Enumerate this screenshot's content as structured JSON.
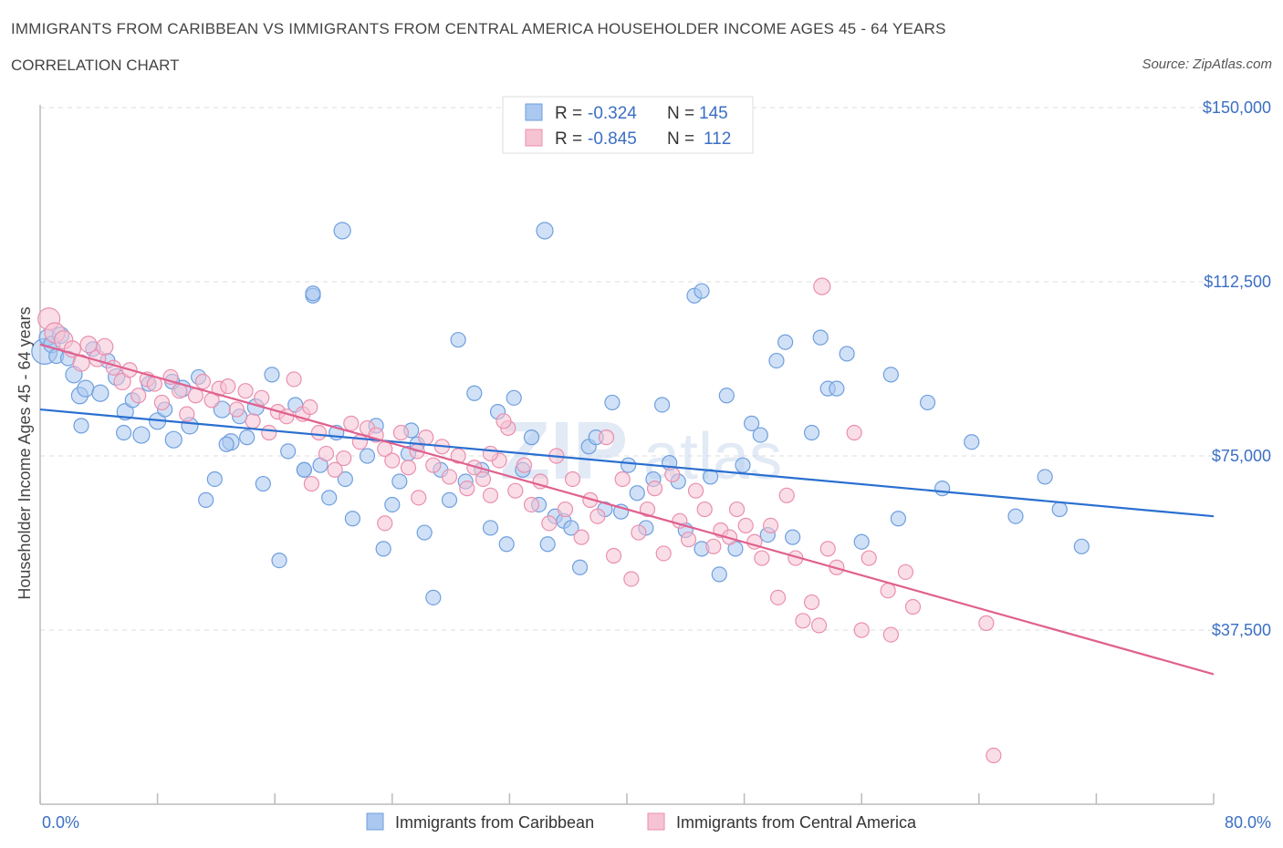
{
  "header": {
    "title": "IMMIGRANTS FROM CARIBBEAN VS IMMIGRANTS FROM CENTRAL AMERICA HOUSEHOLDER INCOME AGES 45 - 64 YEARS",
    "subtitle": "CORRELATION CHART",
    "source": "Source: ZipAtlas.com"
  },
  "watermark": {
    "zip": "ZIP",
    "atlas": "atlas"
  },
  "colors": {
    "blue_fill": "#aac8f0",
    "blue_stroke": "#6f9fde",
    "blue_line": "#2a6fd1",
    "pink_fill": "#f6c3d3",
    "pink_stroke": "#ea8fae",
    "pink_line": "#e0608e",
    "axis_label": "#3b6fc4",
    "grid": "#dddddd"
  },
  "legend": {
    "rows": [
      {
        "r_label": "R = ",
        "r_value": "-0.324",
        "n_label": "N = ",
        "n_value": "145"
      },
      {
        "r_label": "R = ",
        "r_value": "-0.845",
        "n_label": "N = ",
        "n_value": "112"
      }
    ]
  },
  "bottom_legend": [
    "Immigrants from Caribbean",
    "Immigrants from Central America"
  ],
  "chart_data": {
    "type": "scatter",
    "title": "IMMIGRANTS FROM CARIBBEAN VS IMMIGRANTS FROM CENTRAL AMERICA HOUSEHOLDER INCOME AGES 45 - 64 YEARS",
    "xlabel": "",
    "ylabel": "Householder Income Ages 45 - 64 years",
    "xlim": [
      0,
      80
    ],
    "ylim": [
      0,
      150000
    ],
    "x_tick_labels": [
      "0.0%",
      "80.0%"
    ],
    "y_ticks": [
      37500,
      75000,
      112500,
      150000
    ],
    "y_tick_labels": [
      "$37,500",
      "$75,000",
      "$112,500",
      "$150,000"
    ],
    "grid": true,
    "series": [
      {
        "name": "Immigrants from Caribbean",
        "R": -0.324,
        "N": 145,
        "trend": {
          "x": [
            0,
            80
          ],
          "y": [
            85000,
            62000
          ]
        },
        "points": [
          [
            0.3,
            97500,
            14
          ],
          [
            0.5,
            100500,
            9
          ],
          [
            0.8,
            99000,
            9
          ],
          [
            1.1,
            96500,
            8
          ],
          [
            1.4,
            101000,
            9
          ],
          [
            1.9,
            96000,
            8
          ],
          [
            2.3,
            92500,
            9
          ],
          [
            2.7,
            88000,
            9
          ],
          [
            3.1,
            89500,
            9
          ],
          [
            3.6,
            98000,
            8
          ],
          [
            4.1,
            88500,
            9
          ],
          [
            4.6,
            95500,
            8
          ],
          [
            5.2,
            92000,
            9
          ],
          [
            5.8,
            84500,
            9
          ],
          [
            6.3,
            87000,
            8
          ],
          [
            6.9,
            79500,
            9
          ],
          [
            7.4,
            90500,
            8
          ],
          [
            8.0,
            82500,
            9
          ],
          [
            8.5,
            85000,
            8
          ],
          [
            9.1,
            78500,
            9
          ],
          [
            9.7,
            89500,
            9
          ],
          [
            10.2,
            81500,
            9
          ],
          [
            10.8,
            92000,
            8
          ],
          [
            11.3,
            65500,
            8
          ],
          [
            11.9,
            70000,
            8
          ],
          [
            12.4,
            85000,
            9
          ],
          [
            13.0,
            78000,
            9
          ],
          [
            13.6,
            83500,
            8
          ],
          [
            14.1,
            79000,
            8
          ],
          [
            14.7,
            85500,
            9
          ],
          [
            15.2,
            69000,
            8
          ],
          [
            15.8,
            92500,
            8
          ],
          [
            16.3,
            52500,
            8
          ],
          [
            16.9,
            76000,
            8
          ],
          [
            17.4,
            86000,
            8
          ],
          [
            18.0,
            72000,
            8
          ],
          [
            18.6,
            109500,
            8
          ],
          [
            19.1,
            73000,
            8
          ],
          [
            19.7,
            66000,
            8
          ],
          [
            20.2,
            80000,
            8
          ],
          [
            20.8,
            70000,
            8
          ],
          [
            21.3,
            61500,
            8
          ],
          [
            22.3,
            75000,
            8
          ],
          [
            22.9,
            81500,
            8
          ],
          [
            23.4,
            55000,
            8
          ],
          [
            24.0,
            64500,
            8
          ],
          [
            24.5,
            69500,
            8
          ],
          [
            25.1,
            75500,
            8
          ],
          [
            25.7,
            77500,
            8
          ],
          [
            26.2,
            58500,
            8
          ],
          [
            26.8,
            44500,
            8
          ],
          [
            27.3,
            72000,
            8
          ],
          [
            27.9,
            65500,
            8
          ],
          [
            28.5,
            100000,
            8
          ],
          [
            29.0,
            69500,
            8
          ],
          [
            29.6,
            88500,
            8
          ],
          [
            30.1,
            72000,
            8
          ],
          [
            30.7,
            59500,
            8
          ],
          [
            31.2,
            84500,
            8
          ],
          [
            31.8,
            56000,
            8
          ],
          [
            32.3,
            87500,
            8
          ],
          [
            32.9,
            72000,
            8
          ],
          [
            33.5,
            79000,
            8
          ],
          [
            34.0,
            64500,
            8
          ],
          [
            34.6,
            56000,
            8
          ],
          [
            35.1,
            62000,
            8
          ],
          [
            35.7,
            61000,
            8
          ],
          [
            36.2,
            59500,
            8
          ],
          [
            36.8,
            51000,
            8
          ],
          [
            37.4,
            77000,
            8
          ],
          [
            37.9,
            79000,
            8
          ],
          [
            38.5,
            63500,
            8
          ],
          [
            39.0,
            86500,
            8
          ],
          [
            39.6,
            63000,
            8
          ],
          [
            40.1,
            73000,
            8
          ],
          [
            40.7,
            67000,
            8
          ],
          [
            41.3,
            59500,
            8
          ],
          [
            41.8,
            70000,
            8
          ],
          [
            42.4,
            86000,
            8
          ],
          [
            42.9,
            73500,
            8
          ],
          [
            43.5,
            69500,
            8
          ],
          [
            44.0,
            59000,
            8
          ],
          [
            44.6,
            109500,
            8
          ],
          [
            45.1,
            55000,
            8
          ],
          [
            45.7,
            70500,
            8
          ],
          [
            46.3,
            49500,
            8
          ],
          [
            46.8,
            88000,
            8
          ],
          [
            47.4,
            55000,
            8
          ],
          [
            47.9,
            73000,
            8
          ],
          [
            48.5,
            82000,
            8
          ],
          [
            49.1,
            79500,
            8
          ],
          [
            49.6,
            58000,
            8
          ],
          [
            50.2,
            95500,
            8
          ],
          [
            50.8,
            99500,
            8
          ],
          [
            51.3,
            57500,
            8
          ],
          [
            52.6,
            80000,
            8
          ],
          [
            53.2,
            100500,
            8
          ],
          [
            53.7,
            89500,
            8
          ],
          [
            54.3,
            89500,
            8
          ],
          [
            55.0,
            97000,
            8
          ],
          [
            56.0,
            56500,
            8
          ],
          [
            58.0,
            92500,
            8
          ],
          [
            58.5,
            61500,
            8
          ],
          [
            60.5,
            86500,
            8
          ],
          [
            61.5,
            68000,
            8
          ],
          [
            63.5,
            78000,
            8
          ],
          [
            66.5,
            62000,
            8
          ],
          [
            68.5,
            70500,
            8
          ],
          [
            69.5,
            63500,
            8
          ],
          [
            71.0,
            55500,
            8
          ],
          [
            18.6,
            110000,
            8
          ],
          [
            18.0,
            72000,
            8
          ],
          [
            20.6,
            123500,
            9
          ],
          [
            34.4,
            123500,
            9
          ],
          [
            45.1,
            110500,
            8
          ],
          [
            25.3,
            80500,
            8
          ],
          [
            2.8,
            81500,
            8
          ],
          [
            5.7,
            80000,
            8
          ],
          [
            9.0,
            91000,
            8
          ],
          [
            12.7,
            77500,
            8
          ]
        ]
      },
      {
        "name": "Immigrants from Central America",
        "R": -0.845,
        "N": 112,
        "trend": {
          "x": [
            0,
            80
          ],
          "y": [
            99000,
            28000
          ]
        },
        "points": [
          [
            0.6,
            104500,
            12
          ],
          [
            1.0,
            101500,
            11
          ],
          [
            1.6,
            100000,
            10
          ],
          [
            2.2,
            98000,
            9
          ],
          [
            2.8,
            95000,
            9
          ],
          [
            3.3,
            99000,
            9
          ],
          [
            3.9,
            96000,
            9
          ],
          [
            4.4,
            98500,
            9
          ],
          [
            5.0,
            94000,
            8
          ],
          [
            5.6,
            91000,
            9
          ],
          [
            6.1,
            93500,
            8
          ],
          [
            6.7,
            88000,
            8
          ],
          [
            7.3,
            91500,
            8
          ],
          [
            7.8,
            90500,
            8
          ],
          [
            8.3,
            86500,
            8
          ],
          [
            8.9,
            92000,
            8
          ],
          [
            9.5,
            89000,
            8
          ],
          [
            10.0,
            84000,
            8
          ],
          [
            10.6,
            88000,
            8
          ],
          [
            11.1,
            91000,
            8
          ],
          [
            11.7,
            87000,
            8
          ],
          [
            12.2,
            89500,
            8
          ],
          [
            12.8,
            90000,
            8
          ],
          [
            13.4,
            85000,
            8
          ],
          [
            14.0,
            89000,
            8
          ],
          [
            14.5,
            82500,
            8
          ],
          [
            15.1,
            87500,
            8
          ],
          [
            15.6,
            80000,
            8
          ],
          [
            16.2,
            84500,
            8
          ],
          [
            16.8,
            83500,
            8
          ],
          [
            17.3,
            91500,
            8
          ],
          [
            17.9,
            84000,
            8
          ],
          [
            18.4,
            85500,
            8
          ],
          [
            19.0,
            80000,
            8
          ],
          [
            19.5,
            75500,
            8
          ],
          [
            20.1,
            72000,
            8
          ],
          [
            20.7,
            74500,
            8
          ],
          [
            21.2,
            82000,
            8
          ],
          [
            21.8,
            78000,
            8
          ],
          [
            22.3,
            81000,
            8
          ],
          [
            22.9,
            79500,
            8
          ],
          [
            23.5,
            76500,
            8
          ],
          [
            24.0,
            74000,
            8
          ],
          [
            24.6,
            80000,
            8
          ],
          [
            25.1,
            72500,
            8
          ],
          [
            25.7,
            76000,
            8
          ],
          [
            26.3,
            79000,
            8
          ],
          [
            26.8,
            73000,
            8
          ],
          [
            27.4,
            77000,
            8
          ],
          [
            27.9,
            70500,
            8
          ],
          [
            28.5,
            75000,
            8
          ],
          [
            29.1,
            68000,
            8
          ],
          [
            29.6,
            72500,
            8
          ],
          [
            30.2,
            70000,
            8
          ],
          [
            30.7,
            66500,
            8
          ],
          [
            31.3,
            74000,
            8
          ],
          [
            31.9,
            81000,
            8
          ],
          [
            32.4,
            67500,
            8
          ],
          [
            33.0,
            73000,
            8
          ],
          [
            33.5,
            64500,
            8
          ],
          [
            34.1,
            69500,
            8
          ],
          [
            34.7,
            60500,
            8
          ],
          [
            35.2,
            75000,
            8
          ],
          [
            35.8,
            63500,
            8
          ],
          [
            36.3,
            70000,
            8
          ],
          [
            36.9,
            57500,
            8
          ],
          [
            37.5,
            65500,
            8
          ],
          [
            38.0,
            62000,
            8
          ],
          [
            38.6,
            79000,
            8
          ],
          [
            39.1,
            53500,
            8
          ],
          [
            39.7,
            70000,
            8
          ],
          [
            40.3,
            48500,
            8
          ],
          [
            40.8,
            58500,
            8
          ],
          [
            41.4,
            63500,
            8
          ],
          [
            41.9,
            68000,
            8
          ],
          [
            42.5,
            54000,
            8
          ],
          [
            43.1,
            71000,
            8
          ],
          [
            43.6,
            61000,
            8
          ],
          [
            44.2,
            57000,
            8
          ],
          [
            44.7,
            67500,
            8
          ],
          [
            45.3,
            63500,
            8
          ],
          [
            45.9,
            55500,
            8
          ],
          [
            46.4,
            59000,
            8
          ],
          [
            47.0,
            57500,
            8
          ],
          [
            47.5,
            63500,
            8
          ],
          [
            48.1,
            60000,
            8
          ],
          [
            48.7,
            56500,
            8
          ],
          [
            49.2,
            53000,
            8
          ],
          [
            49.8,
            60000,
            8
          ],
          [
            50.3,
            44500,
            8
          ],
          [
            50.9,
            66500,
            8
          ],
          [
            51.5,
            53000,
            8
          ],
          [
            52.0,
            39500,
            8
          ],
          [
            52.6,
            43500,
            8
          ],
          [
            53.1,
            38500,
            8
          ],
          [
            53.7,
            55000,
            8
          ],
          [
            54.3,
            51000,
            8
          ],
          [
            55.5,
            80000,
            8
          ],
          [
            56.0,
            37500,
            8
          ],
          [
            56.5,
            53000,
            8
          ],
          [
            57.8,
            46000,
            8
          ],
          [
            58.0,
            36500,
            8
          ],
          [
            59.0,
            50000,
            8
          ],
          [
            59.5,
            42500,
            8
          ],
          [
            64.5,
            39000,
            8
          ],
          [
            65.0,
            10500,
            8
          ],
          [
            53.3,
            111500,
            9
          ],
          [
            31.6,
            82500,
            8
          ],
          [
            30.7,
            75500,
            8
          ],
          [
            23.5,
            60500,
            8
          ],
          [
            18.5,
            69000,
            8
          ],
          [
            25.8,
            66000,
            8
          ]
        ]
      }
    ]
  }
}
